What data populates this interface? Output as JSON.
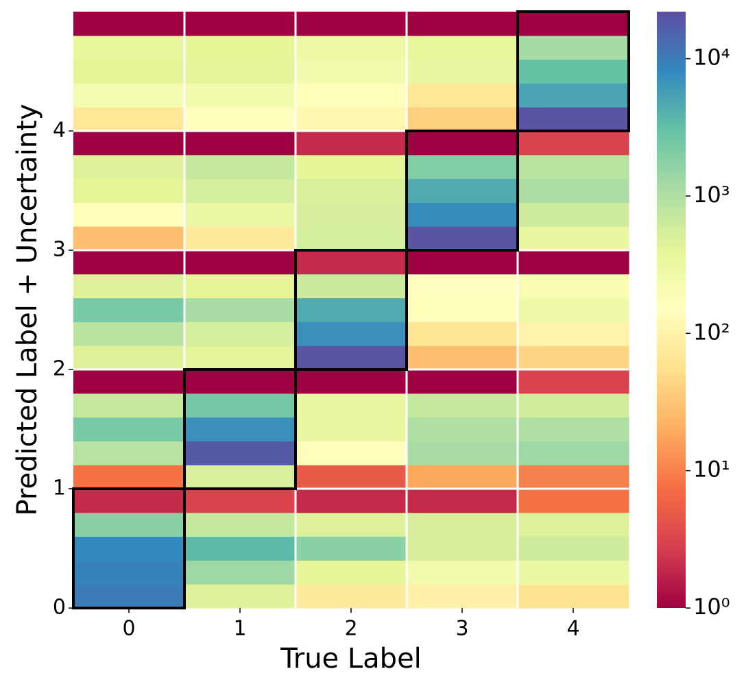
{
  "chart_data": {
    "type": "heatmap",
    "x_label": "True Label",
    "y_label": "Predicted Label + Uncertainty",
    "categories": [
      "0",
      "1",
      "2",
      "3",
      "4"
    ],
    "ylim": [
      0,
      5
    ],
    "yticks": [
      0,
      1,
      2,
      3,
      4
    ],
    "highlight_diagonal": true,
    "values": [
      [
        10000,
        450,
        75,
        95,
        60
      ],
      [
        9000,
        1300,
        400,
        240,
        300
      ],
      [
        8000,
        3500,
        1800,
        520,
        600
      ],
      [
        1800,
        700,
        480,
        520,
        480
      ],
      [
        2,
        3,
        2,
        2,
        8
      ],
      [
        8,
        500,
        5,
        19,
        10
      ],
      [
        900,
        18000,
        140,
        1150,
        1300
      ],
      [
        2300,
        7000,
        330,
        1000,
        1000
      ],
      [
        700,
        2400,
        330,
        700,
        580
      ],
      [
        1,
        1,
        1,
        1,
        3
      ],
      [
        450,
        420,
        20000,
        28,
        45
      ],
      [
        850,
        550,
        7000,
        65,
        100
      ],
      [
        2300,
        1150,
        4500,
        170,
        270
      ],
      [
        450,
        400,
        650,
        150,
        200
      ],
      [
        1,
        1,
        2,
        1,
        1
      ],
      [
        28,
        75,
        550,
        20000,
        330
      ],
      [
        140,
        300,
        530,
        7500,
        600
      ],
      [
        400,
        550,
        500,
        4500,
        1100
      ],
      [
        450,
        700,
        400,
        2000,
        850
      ],
      [
        1,
        1,
        2,
        1,
        3
      ],
      [
        70,
        160,
        110,
        40,
        20000
      ],
      [
        220,
        250,
        170,
        70,
        5000
      ],
      [
        400,
        420,
        240,
        330,
        3000
      ],
      [
        350,
        400,
        290,
        350,
        1200
      ],
      [
        1,
        1,
        1,
        1,
        1
      ]
    ],
    "colorbar": {
      "scale": "log",
      "colormap": "Spectral",
      "lim": [
        1,
        22000
      ],
      "ticks": [
        {
          "value": 1,
          "label": "10⁰"
        },
        {
          "value": 10,
          "label": "10¹"
        },
        {
          "value": 100,
          "label": "10²"
        },
        {
          "value": 1000,
          "label": "10³"
        },
        {
          "value": 10000,
          "label": "10⁴"
        }
      ]
    }
  }
}
